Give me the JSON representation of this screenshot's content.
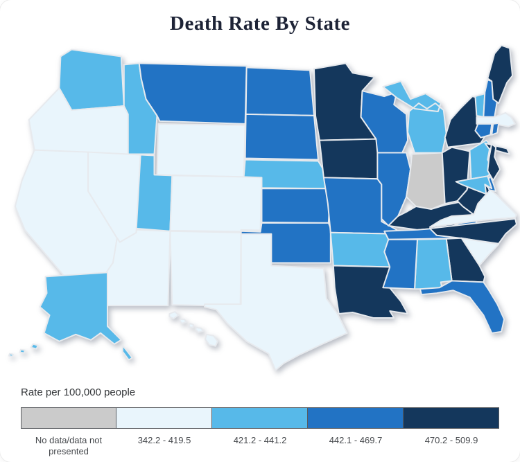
{
  "title": "Death Rate By State",
  "legend": {
    "label": "Rate per 100,000 people",
    "bins": [
      {
        "label": "No data/data not presented",
        "color": "#cbcbcb"
      },
      {
        "label": "342.2 - 419.5",
        "color": "#e9f5fc"
      },
      {
        "label": "421.2 - 441.2",
        "color": "#57b9e9"
      },
      {
        "label": "442.1 - 469.7",
        "color": "#2273c4"
      },
      {
        "label": "470.2 - 509.9",
        "color": "#14375c"
      }
    ]
  },
  "chart_data": {
    "type": "choropleth",
    "title": "Death Rate By State",
    "unit_label": "Rate per 100,000 people",
    "bins": [
      "No data/data not presented",
      "342.2 - 419.5",
      "421.2 - 441.2",
      "442.1 - 469.7",
      "470.2 - 509.9"
    ],
    "bin_colors": [
      "#cbcbcb",
      "#e9f5fc",
      "#57b9e9",
      "#2273c4",
      "#14375c"
    ],
    "state_bin_index": {
      "AL": 2,
      "AK": 2,
      "AZ": 1,
      "AR": 2,
      "CA": 1,
      "CO": 1,
      "CT": 3,
      "DE": 3,
      "FL": 3,
      "GA": 4,
      "HI": 1,
      "ID": 2,
      "IL": 3,
      "IN": 0,
      "IA": 4,
      "KS": 3,
      "KY": 4,
      "LA": 4,
      "ME": 4,
      "MD": 2,
      "MA": 1,
      "MI": 2,
      "MN": 4,
      "MS": 3,
      "MO": 3,
      "MT": 3,
      "NE": 2,
      "NV": 1,
      "NH": 3,
      "NJ": 4,
      "NM": 1,
      "NY": 4,
      "NC": 4,
      "ND": 3,
      "OH": 4,
      "OK": 3,
      "OR": 1,
      "PA": 2,
      "RI": 3,
      "SC": 1,
      "SD": 3,
      "TN": 3,
      "TX": 1,
      "UT": 2,
      "VT": 2,
      "VA": 1,
      "WA": 2,
      "WV": 4,
      "WI": 3,
      "WY": 1
    }
  }
}
